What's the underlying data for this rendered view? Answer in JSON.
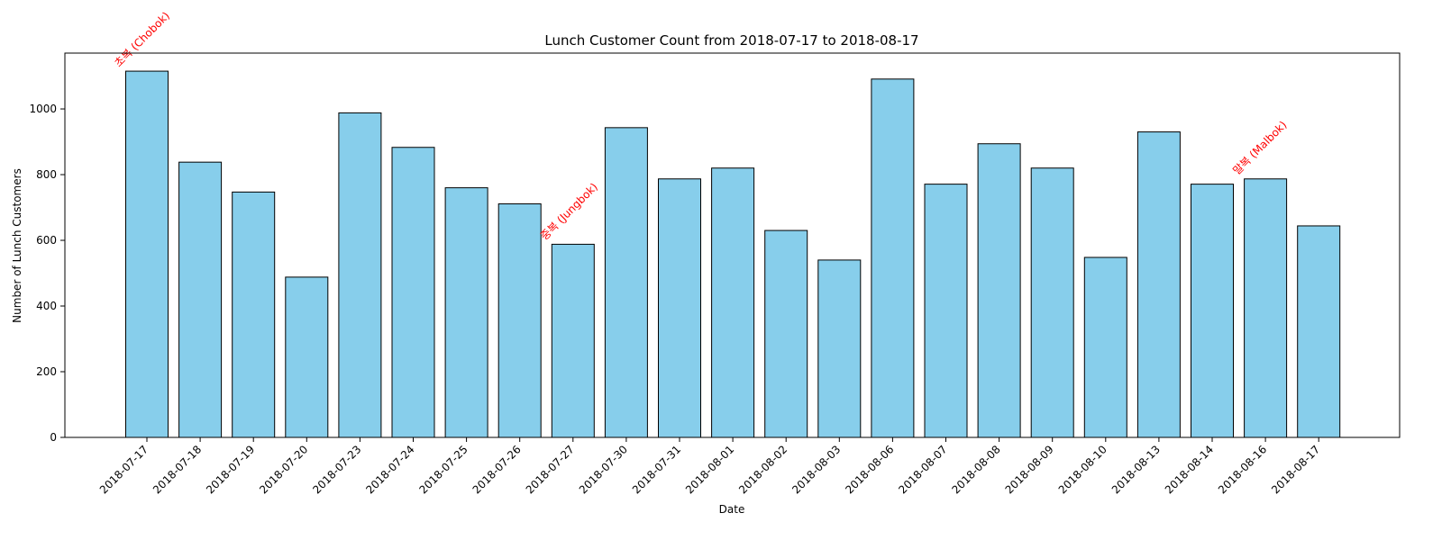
{
  "chart_data": {
    "type": "bar",
    "title": "Lunch Customer Count from 2018-07-17 to 2018-08-17",
    "xlabel": "Date",
    "ylabel": "Number of Lunch Customers",
    "ylim": [
      0,
      1170
    ],
    "yticks": [
      0,
      200,
      400,
      600,
      800,
      1000
    ],
    "categories": [
      "2018-07-17",
      "2018-07-18",
      "2018-07-19",
      "2018-07-20",
      "2018-07-23",
      "2018-07-24",
      "2018-07-25",
      "2018-07-26",
      "2018-07-27",
      "2018-07-30",
      "2018-07-31",
      "2018-08-01",
      "2018-08-02",
      "2018-08-03",
      "2018-08-06",
      "2018-08-07",
      "2018-08-08",
      "2018-08-09",
      "2018-08-10",
      "2018-08-13",
      "2018-08-14",
      "2018-08-16",
      "2018-08-17"
    ],
    "values": [
      1115,
      838,
      747,
      488,
      988,
      883,
      760,
      711,
      588,
      943,
      787,
      820,
      630,
      540,
      1091,
      771,
      894,
      820,
      548,
      930,
      771,
      787,
      644
    ],
    "bar_color": "#87ceeb",
    "bar_edge_color": "#000000",
    "annotation_color": "#ff0000",
    "annotations": [
      {
        "category": "2018-07-17",
        "text": "초복 (Chobok)"
      },
      {
        "category": "2018-07-27",
        "text": "중복 (Jungbok)"
      },
      {
        "category": "2018-08-16",
        "text": "말복 (Malbok)"
      }
    ],
    "grid": false,
    "legend": "none"
  }
}
